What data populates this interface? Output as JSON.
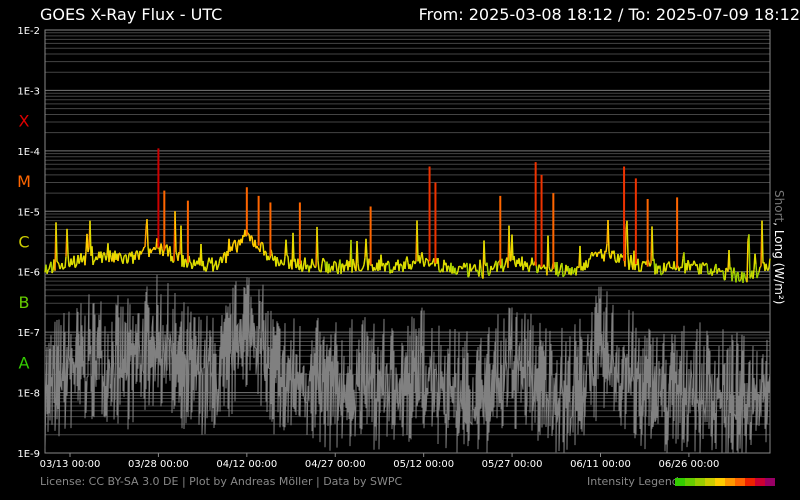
{
  "header": {
    "title": "GOES X-Ray Flux - UTC",
    "from_label": "From:",
    "from_value": "2025-03-08 18:12",
    "separator": "/",
    "to_label": "To:",
    "to_value": "2025-07-09 18:12"
  },
  "footer": {
    "credits": "License: CC BY-SA 3.0 DE | Plot by Andreas Möller | Data by SWPC",
    "legend_label": "Intensity Legend",
    "legend_colors": [
      "#33cc00",
      "#66cc00",
      "#99cc00",
      "#cccc00",
      "#ffcc00",
      "#ff9900",
      "#ff6600",
      "#ee2200",
      "#cc0033",
      "#990066"
    ]
  },
  "chart_data": {
    "type": "line",
    "title": "GOES X-Ray Flux - UTC",
    "ylabel_short": "Short",
    "ylabel_long": ", Long (W/m²)",
    "y_scale": "log",
    "ylim": [
      1e-09,
      0.01
    ],
    "y_ticks": [
      "1E-9",
      "1E-8",
      "1E-7",
      "1E-6",
      "1E-5",
      "1E-4",
      "1E-3",
      "1E-2"
    ],
    "flare_classes": [
      {
        "label": "A",
        "color": "#33cc00",
        "level": 1e-08
      },
      {
        "label": "B",
        "color": "#66cc00",
        "level": 1e-07
      },
      {
        "label": "C",
        "color": "#cccc00",
        "level": 1e-06
      },
      {
        "label": "M",
        "color": "#ff6600",
        "level": 1e-05
      },
      {
        "label": "X",
        "color": "#dd0000",
        "level": 0.0001
      }
    ],
    "x_range": [
      "2025-03-08 18:12",
      "2025-07-09 18:12"
    ],
    "x_ticks": [
      "03/13 00:00",
      "03/28 00:00",
      "04/12 00:00",
      "04/27 00:00",
      "05/12 00:00",
      "05/27 00:00",
      "06/11 00:00",
      "06/26 00:00"
    ],
    "grid": true,
    "series": [
      {
        "name": "Long",
        "color": "#cccc00",
        "x": [
          "03/08",
          "03/13",
          "03/18",
          "03/23",
          "03/28",
          "04/02",
          "04/07",
          "04/12",
          "04/17",
          "04/22",
          "04/27",
          "05/02",
          "05/07",
          "05/12",
          "05/17",
          "05/22",
          "05/27",
          "06/01",
          "06/06",
          "06/11",
          "06/16",
          "06/21",
          "06/26",
          "07/01",
          "07/06",
          "07/09"
        ],
        "values": [
          1.1e-06,
          1.5e-06,
          1.8e-06,
          1.6e-06,
          2.5e-06,
          1.4e-06,
          1.3e-06,
          4e-06,
          1.5e-06,
          1.3e-06,
          1.2e-06,
          1.3e-06,
          1.2e-06,
          1.6e-06,
          1.1e-06,
          1e-06,
          1.5e-06,
          1.2e-06,
          1e-06,
          2e-06,
          1.4e-06,
          1.1e-06,
          1.2e-06,
          1e-06,
          8e-07,
          1.3e-06
        ]
      },
      {
        "name": "Short",
        "color": "#808080",
        "x": [
          "03/08",
          "03/13",
          "03/18",
          "03/23",
          "03/28",
          "04/02",
          "04/07",
          "04/12",
          "04/17",
          "04/22",
          "04/27",
          "05/02",
          "05/07",
          "05/12",
          "05/17",
          "05/22",
          "05/27",
          "06/01",
          "06/06",
          "06/11",
          "06/16",
          "06/21",
          "06/26",
          "07/01",
          "07/06",
          "07/09"
        ],
        "values": [
          2e-08,
          5e-08,
          8e-08,
          6e-08,
          1.5e-07,
          5e-08,
          3e-08,
          3e-07,
          4e-08,
          3e-08,
          2.5e-08,
          3e-08,
          2.5e-08,
          5e-08,
          2e-08,
          1.8e-08,
          6e-08,
          3e-08,
          2e-08,
          1e-07,
          4e-08,
          2e-08,
          2.5e-08,
          2e-08,
          1.5e-08,
          3e-08
        ]
      }
    ],
    "peaks": [
      {
        "x": "03/28",
        "value": 0.00011
      },
      {
        "x": "03/29",
        "value": 2.2e-05
      },
      {
        "x": "04/02",
        "value": 1.5e-05
      },
      {
        "x": "04/12",
        "value": 2.5e-05
      },
      {
        "x": "04/14",
        "value": 1.8e-05
      },
      {
        "x": "04/16",
        "value": 1.4e-05
      },
      {
        "x": "04/21",
        "value": 1.4e-05
      },
      {
        "x": "05/03",
        "value": 1.2e-05
      },
      {
        "x": "05/13",
        "value": 5.5e-05
      },
      {
        "x": "05/14",
        "value": 3e-05
      },
      {
        "x": "05/25",
        "value": 1.8e-05
      },
      {
        "x": "05/31",
        "value": 6.5e-05
      },
      {
        "x": "06/01",
        "value": 4e-05
      },
      {
        "x": "06/03",
        "value": 2e-05
      },
      {
        "x": "06/15",
        "value": 5.5e-05
      },
      {
        "x": "06/17",
        "value": 3.5e-05
      },
      {
        "x": "06/19",
        "value": 1.6e-05
      },
      {
        "x": "06/24",
        "value": 1.7e-05
      }
    ]
  }
}
